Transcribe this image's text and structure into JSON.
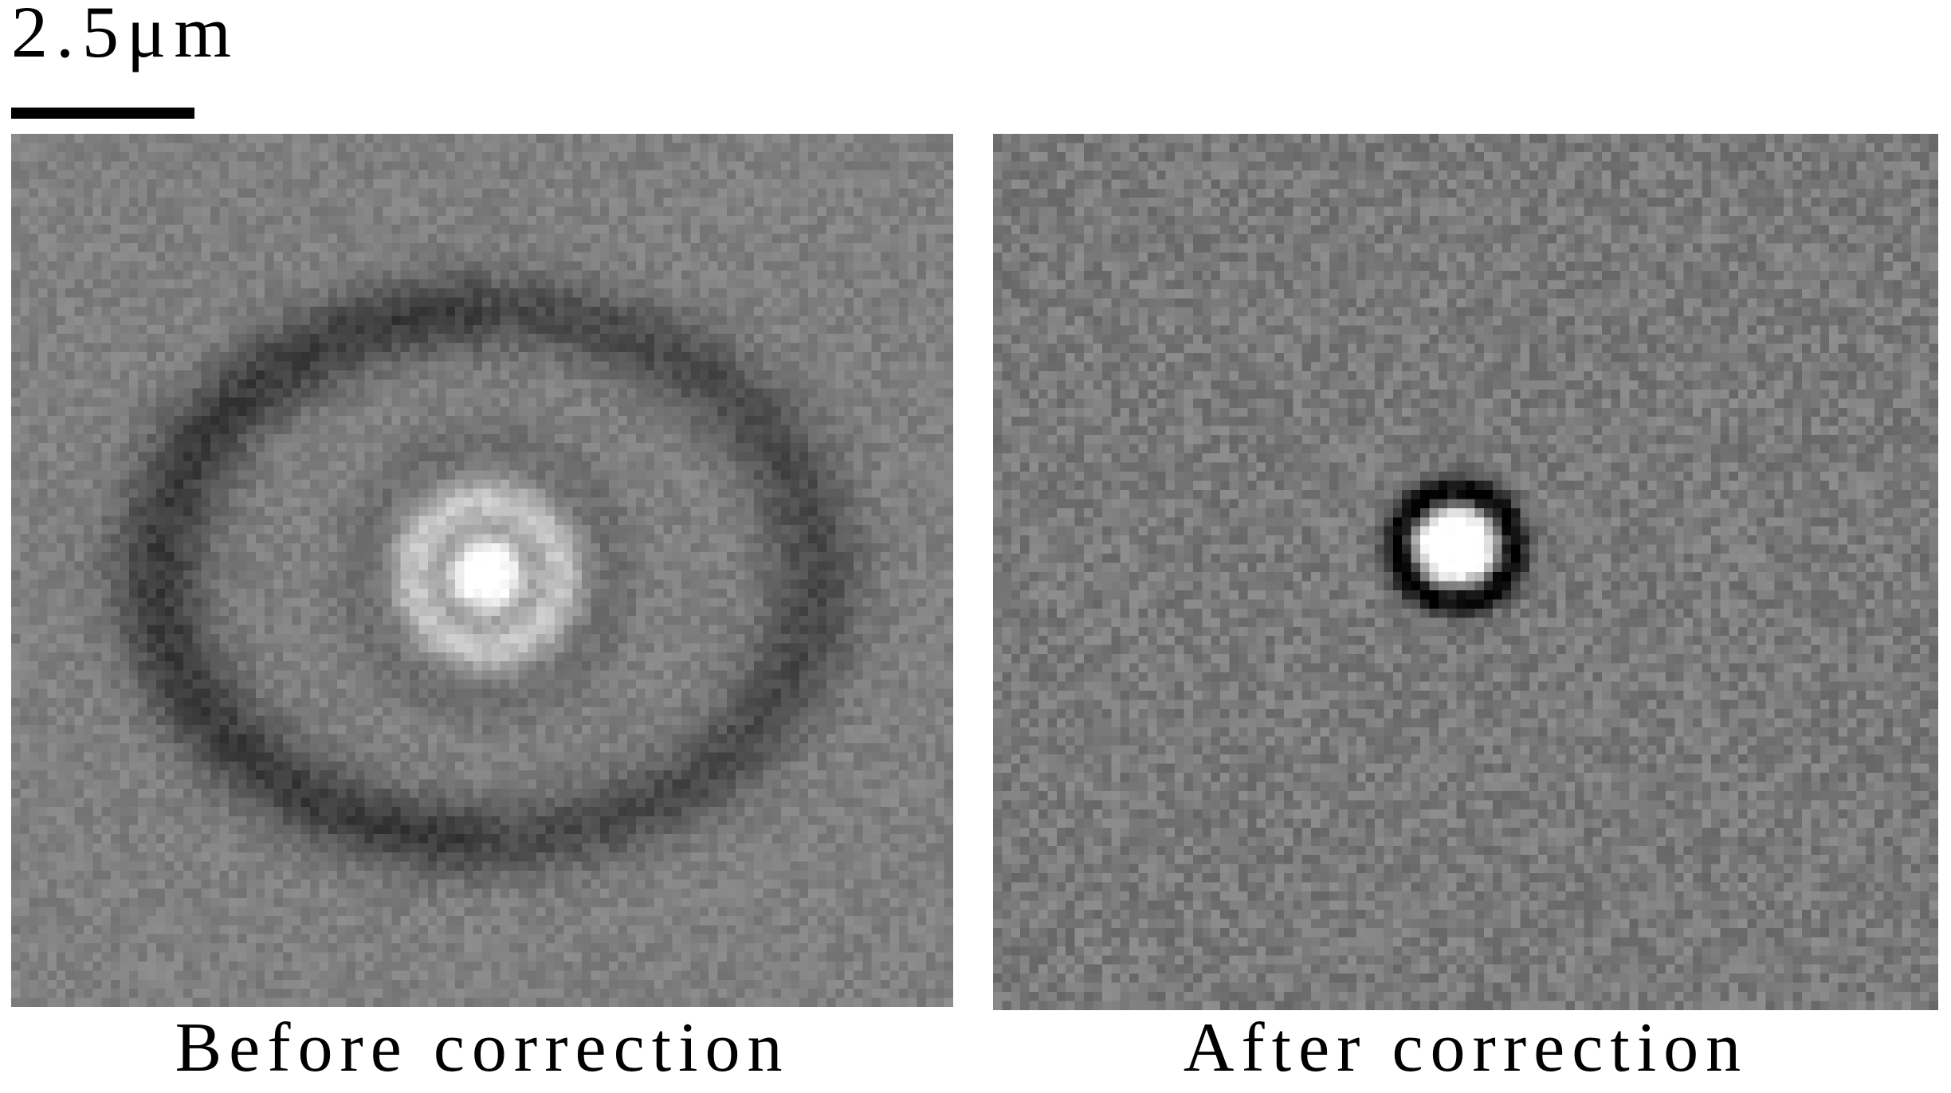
{
  "scale_bar": {
    "label": "2.5μm"
  },
  "panels": [
    {
      "caption": "Before correction",
      "image": "microscopy-image-before-correction"
    },
    {
      "caption": "After correction",
      "image": "microscopy-image-after-correction"
    }
  ]
}
